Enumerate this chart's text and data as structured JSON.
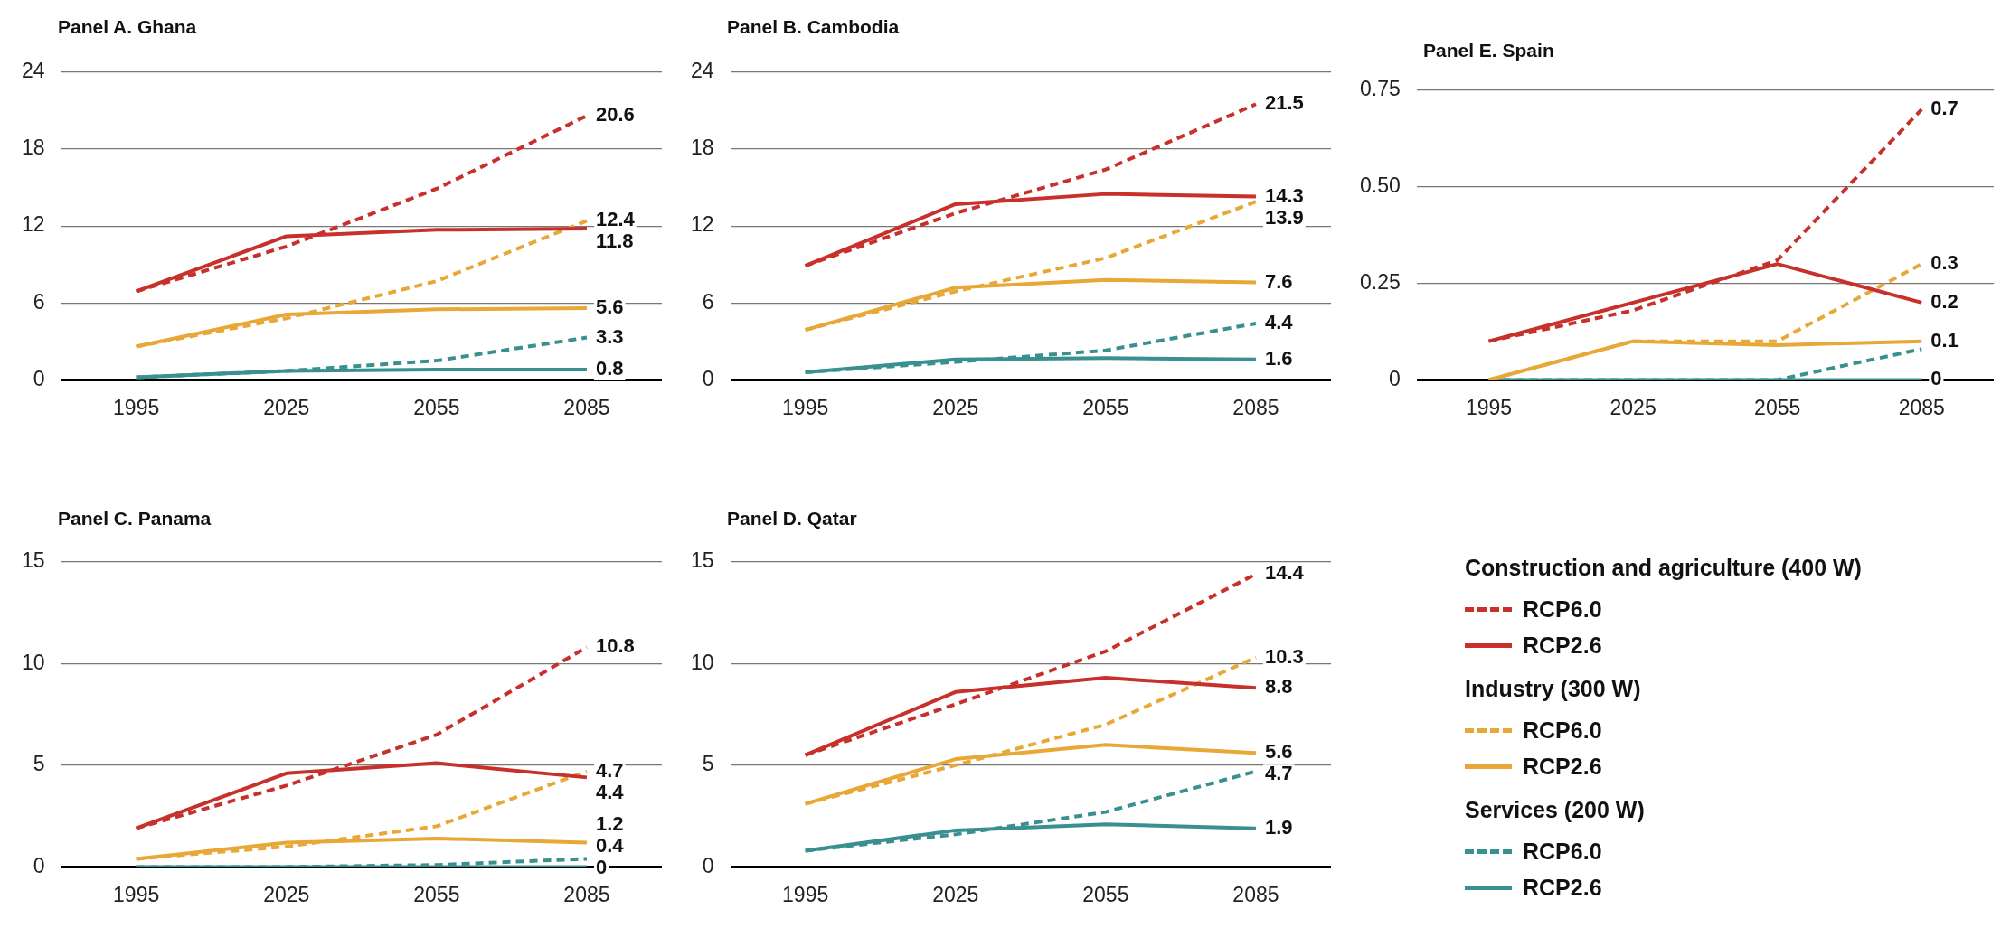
{
  "chart_data": [
    {
      "type": "line",
      "title": "Panel A.  Ghana",
      "categories": [
        "1995",
        "2025",
        "2055",
        "2085"
      ],
      "ylim": [
        0,
        24
      ],
      "yticks": [
        0,
        6,
        12,
        18,
        24
      ],
      "grid": "y",
      "series": [
        {
          "color": "#c8312b",
          "line_style": "dashed",
          "values": [
            6.9,
            10.4,
            14.9,
            20.6
          ],
          "value_labels": [
            null,
            null,
            null,
            "20.6"
          ]
        },
        {
          "color": "#c8312b",
          "line_style": "solid",
          "values": [
            6.9,
            11.2,
            11.7,
            11.8
          ],
          "value_labels": [
            null,
            null,
            null,
            "11.8"
          ]
        },
        {
          "color": "#e8a838",
          "line_style": "dashed",
          "values": [
            2.6,
            4.8,
            7.7,
            12.4
          ],
          "value_labels": [
            null,
            null,
            null,
            "12.4"
          ]
        },
        {
          "color": "#e8a838",
          "line_style": "solid",
          "values": [
            2.6,
            5.1,
            5.5,
            5.6
          ],
          "value_labels": [
            null,
            null,
            null,
            "5.6"
          ]
        },
        {
          "color": "#3a9090",
          "line_style": "dashed",
          "values": [
            0.2,
            0.7,
            1.5,
            3.3
          ],
          "value_labels": [
            null,
            null,
            null,
            "3.3"
          ]
        },
        {
          "color": "#3a9090",
          "line_style": "solid",
          "values": [
            0.2,
            0.7,
            0.8,
            0.8
          ],
          "value_labels": [
            null,
            null,
            null,
            "0.8"
          ]
        }
      ]
    },
    {
      "type": "line",
      "title": "Panel B.  Cambodia",
      "categories": [
        "1995",
        "2025",
        "2055",
        "2085"
      ],
      "ylim": [
        0,
        24
      ],
      "yticks": [
        0,
        6,
        12,
        18,
        24
      ],
      "grid": "y",
      "series": [
        {
          "color": "#c8312b",
          "line_style": "dashed",
          "values": [
            8.9,
            13.0,
            16.4,
            21.5
          ],
          "value_labels": [
            null,
            null,
            null,
            "21.5"
          ]
        },
        {
          "color": "#c8312b",
          "line_style": "solid",
          "values": [
            8.9,
            13.7,
            14.5,
            14.3
          ],
          "value_labels": [
            null,
            null,
            null,
            "14.3"
          ]
        },
        {
          "color": "#e8a838",
          "line_style": "dashed",
          "values": [
            3.9,
            6.9,
            9.5,
            13.9
          ],
          "value_labels": [
            null,
            null,
            null,
            "13.9"
          ]
        },
        {
          "color": "#e8a838",
          "line_style": "solid",
          "values": [
            3.9,
            7.2,
            7.8,
            7.6
          ],
          "value_labels": [
            null,
            null,
            null,
            "7.6"
          ]
        },
        {
          "color": "#3a9090",
          "line_style": "dashed",
          "values": [
            0.6,
            1.4,
            2.3,
            4.4
          ],
          "value_labels": [
            null,
            null,
            null,
            "4.4"
          ]
        },
        {
          "color": "#3a9090",
          "line_style": "solid",
          "values": [
            0.6,
            1.6,
            1.7,
            1.6
          ],
          "value_labels": [
            null,
            null,
            null,
            "1.6"
          ]
        }
      ]
    },
    {
      "type": "line",
      "title": "Panel E.  Spain",
      "categories": [
        "1995",
        "2025",
        "2055",
        "2085"
      ],
      "ylim": [
        0,
        0.75
      ],
      "yticks": [
        0,
        {
          "value": 0.25,
          "label": "0.25"
        },
        {
          "value": 0.5,
          "label": "0.50"
        },
        0.75
      ],
      "grid": "y",
      "series": [
        {
          "color": "#c8312b",
          "line_style": "dashed",
          "values": [
            0.1,
            0.18,
            0.31,
            0.7
          ],
          "value_labels": [
            null,
            null,
            null,
            "0.7"
          ]
        },
        {
          "color": "#c8312b",
          "line_style": "solid",
          "values": [
            0.1,
            0.2,
            0.3,
            0.2
          ],
          "value_labels": [
            null,
            null,
            null,
            "0.2"
          ]
        },
        {
          "color": "#e8a838",
          "line_style": "dashed",
          "values": [
            0,
            0.1,
            0.1,
            0.3
          ],
          "value_labels": [
            null,
            null,
            null,
            "0.3"
          ]
        },
        {
          "color": "#e8a838",
          "line_style": "solid",
          "values": [
            0,
            0.1,
            0.09,
            0.1
          ],
          "value_labels": [
            null,
            null,
            null,
            "0.1"
          ]
        },
        {
          "color": "#3a9090",
          "line_style": "dashed",
          "values": [
            0,
            0,
            0,
            0.08
          ]
        },
        {
          "color": "#3a9090",
          "line_style": "solid",
          "values": [
            0,
            0,
            0,
            0
          ],
          "value_labels": [
            null,
            null,
            null,
            "0"
          ]
        }
      ]
    },
    {
      "type": "line",
      "title": "Panel C.  Panama",
      "categories": [
        "1995",
        "2025",
        "2055",
        "2085"
      ],
      "ylim": [
        0,
        15
      ],
      "yticks": [
        0,
        5,
        10,
        15
      ],
      "grid": "y",
      "series": [
        {
          "color": "#c8312b",
          "line_style": "dashed",
          "values": [
            1.9,
            4.0,
            6.5,
            10.8
          ],
          "value_labels": [
            null,
            null,
            null,
            "10.8"
          ]
        },
        {
          "color": "#c8312b",
          "line_style": "solid",
          "values": [
            1.9,
            4.6,
            5.1,
            4.4
          ],
          "value_labels": [
            null,
            null,
            null,
            "4.4"
          ]
        },
        {
          "color": "#e8a838",
          "line_style": "dashed",
          "values": [
            0.4,
            1.0,
            2.0,
            4.7
          ],
          "value_labels": [
            null,
            null,
            null,
            "4.7"
          ]
        },
        {
          "color": "#e8a838",
          "line_style": "solid",
          "values": [
            0.4,
            1.2,
            1.4,
            1.2
          ],
          "value_labels": [
            null,
            null,
            null,
            "1.2"
          ]
        },
        {
          "color": "#3a9090",
          "line_style": "dashed",
          "values": [
            0,
            0,
            0.1,
            0.4
          ],
          "value_labels": [
            null,
            null,
            null,
            "0.4"
          ]
        },
        {
          "color": "#3a9090",
          "line_style": "solid",
          "values": [
            0,
            0,
            0,
            0
          ],
          "value_labels": [
            null,
            null,
            null,
            "0"
          ]
        }
      ]
    },
    {
      "type": "line",
      "title": "Panel D.  Qatar",
      "categories": [
        "1995",
        "2025",
        "2055",
        "2085"
      ],
      "ylim": [
        0,
        15
      ],
      "yticks": [
        0,
        5,
        10,
        15
      ],
      "grid": "y",
      "legend": "right",
      "series": [
        {
          "name": "RCP6.0",
          "color": "#c8312b",
          "line_style": "dashed",
          "values": [
            5.5,
            8.0,
            10.6,
            14.4
          ],
          "value_labels": [
            null,
            null,
            null,
            "14.4"
          ]
        },
        {
          "name": "RCP2.6",
          "color": "#c8312b",
          "line_style": "solid",
          "values": [
            5.5,
            8.6,
            9.3,
            8.8
          ],
          "value_labels": [
            null,
            null,
            null,
            "8.8"
          ]
        },
        {
          "name": "RCP6.0",
          "color": "#e8a838",
          "line_style": "dashed",
          "values": [
            3.1,
            5.0,
            7.0,
            10.3
          ],
          "value_labels": [
            null,
            null,
            null,
            "10.3"
          ]
        },
        {
          "name": "RCP2.6",
          "color": "#e8a838",
          "line_style": "solid",
          "values": [
            3.1,
            5.3,
            6.0,
            5.6
          ],
          "value_labels": [
            null,
            null,
            null,
            "5.6"
          ]
        },
        {
          "name": "RCP6.0",
          "color": "#3a9090",
          "line_style": "dashed",
          "values": [
            0.8,
            1.6,
            2.7,
            4.7
          ],
          "value_labels": [
            null,
            null,
            null,
            "4.7"
          ]
        },
        {
          "name": "RCP2.6",
          "color": "#3a9090",
          "line_style": "solid",
          "values": [
            0.8,
            1.8,
            2.1,
            1.9
          ],
          "value_labels": [
            null,
            null,
            null,
            "1.9"
          ]
        }
      ]
    },
    {
      "type": "other",
      "annotations": [
        "Construction and agriculture (400 W)",
        "Industry (300 W)",
        "Services (200 W)"
      ]
    }
  ]
}
